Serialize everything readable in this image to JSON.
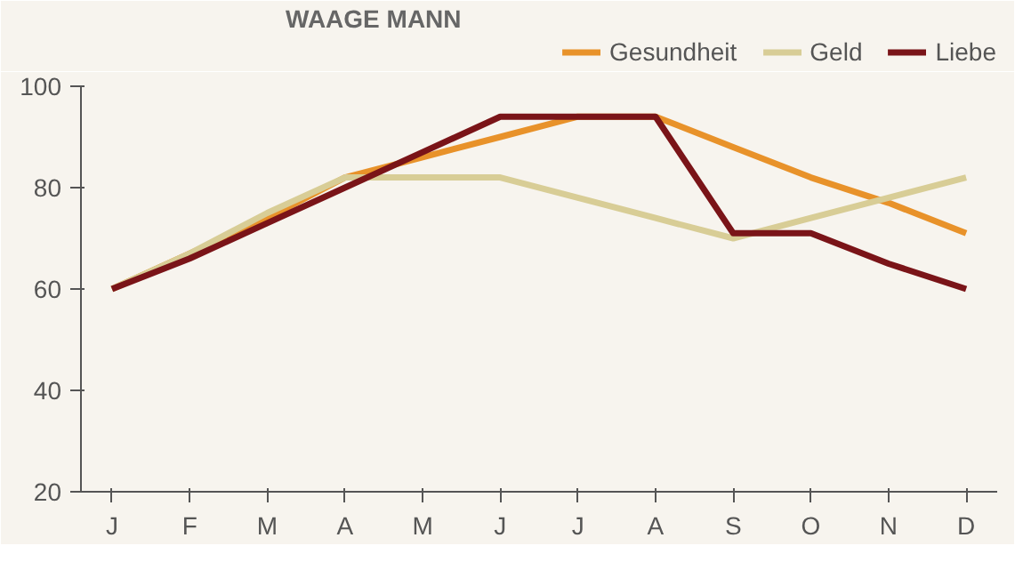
{
  "chart_data": {
    "type": "line",
    "title": "WAAGE MANN",
    "categories": [
      "J",
      "F",
      "M",
      "A",
      "M",
      "J",
      "J",
      "A",
      "S",
      "O",
      "N",
      "D"
    ],
    "series": [
      {
        "name": "Gesundheit",
        "color": "#e8922a",
        "values": [
          60,
          67,
          74,
          82,
          86,
          90,
          94,
          94,
          88,
          82,
          77,
          71
        ]
      },
      {
        "name": "Geld",
        "color": "#d8cd96",
        "values": [
          60,
          67,
          75,
          82,
          82,
          82,
          78,
          74,
          70,
          74,
          78,
          82
        ]
      },
      {
        "name": "Liebe",
        "color": "#7a1418",
        "values": [
          60,
          66,
          73,
          80,
          87,
          94,
          94,
          94,
          71,
          71,
          65,
          60
        ]
      }
    ],
    "ylim": [
      20,
      100
    ],
    "yticks": [
      20,
      40,
      60,
      80,
      100
    ],
    "grid": false,
    "legend": "top right",
    "marker": "none",
    "line_style": "solid"
  }
}
